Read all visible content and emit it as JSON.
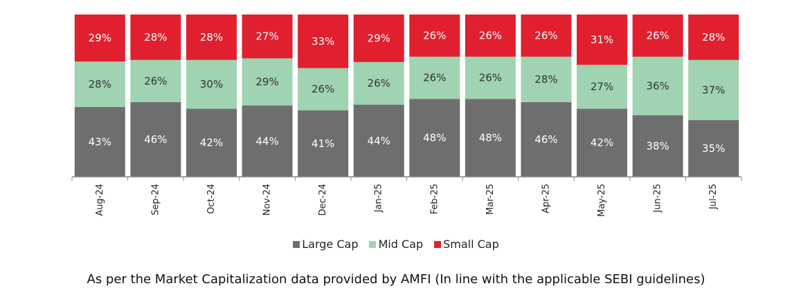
{
  "chart_data": {
    "type": "bar",
    "stacked": true,
    "categories": [
      "Aug-24",
      "Sep-24",
      "Oct-24",
      "Nov-24",
      "Dec-24",
      "Jan-25",
      "Feb-25",
      "Mar-25",
      "Apr-25",
      "May-25",
      "Jun-25",
      "Jul-25"
    ],
    "series": [
      {
        "name": "Large Cap",
        "color": "#6f6e6e",
        "values": [
          43,
          46,
          42,
          44,
          41,
          44,
          48,
          48,
          46,
          42,
          38,
          35
        ],
        "labels": [
          "43%",
          "46%",
          "42%",
          "44%",
          "41%",
          "44%",
          "48%",
          "48%",
          "46%",
          "42%",
          "38%",
          "35%"
        ]
      },
      {
        "name": "Mid Cap",
        "color": "#9fd3b1",
        "values": [
          28,
          26,
          30,
          29,
          26,
          26,
          26,
          26,
          28,
          27,
          36,
          37
        ],
        "labels": [
          "28%",
          "26%",
          "30%",
          "29%",
          "26%",
          "26%",
          "26%",
          "26%",
          "28%",
          "27%",
          "36%",
          "37%"
        ]
      },
      {
        "name": "Small Cap",
        "color": "#e0202e",
        "values": [
          29,
          28,
          28,
          27,
          33,
          29,
          26,
          26,
          26,
          31,
          26,
          28
        ],
        "labels": [
          "29%",
          "28%",
          "28%",
          "27%",
          "33%",
          "29%",
          "26%",
          "26%",
          "26%",
          "31%",
          "26%",
          "28%"
        ]
      }
    ],
    "ylim": [
      0,
      100
    ],
    "grid": false,
    "legend": "bottom"
  },
  "caption": "As per the Market Capitalization data provided by AMFI (In line with the applicable SEBI guidelines)"
}
